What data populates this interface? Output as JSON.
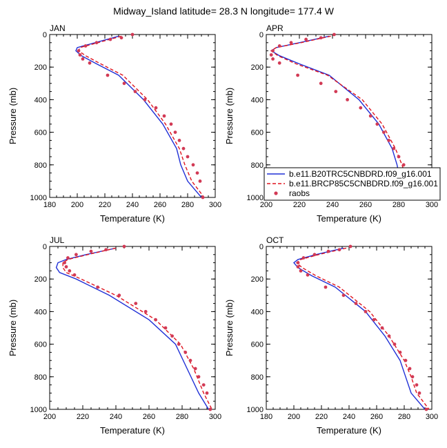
{
  "title": "Midway_Island  latitude= 28.3 N longitude= 177.4 W",
  "colors": {
    "model1": "#1f2fd6",
    "model2": "#e0141e",
    "raobs": "#d23a55",
    "axis": "#000000"
  },
  "legend": {
    "entries": [
      {
        "label": "b.e11.B20TRC5CNBDRD.f09_g16.001",
        "style": "solid"
      },
      {
        "label": "b.e11.BRCP85C5CNBDRD.f09_g16.001",
        "style": "dashed"
      },
      {
        "label": "raobs",
        "style": "marker"
      }
    ]
  },
  "chart_data": [
    {
      "type": "line",
      "title": "JAN",
      "xlabel": "Temperature (K)",
      "ylabel": "Pressure (mb)",
      "xlim": [
        180,
        300
      ],
      "ylim": [
        1000,
        0
      ],
      "xticks": [
        180,
        200,
        220,
        240,
        260,
        280,
        300
      ],
      "yticks": [
        0,
        200,
        400,
        600,
        800,
        1000
      ],
      "series": [
        {
          "name": "b.e11.B20TRC5CNBDRD.f09_g16.001",
          "x": [
            230,
            213,
            200,
            199,
            203,
            214,
            230,
            248,
            262,
            272,
            275,
            280,
            290
          ],
          "y": [
            10,
            50,
            80,
            100,
            130,
            180,
            250,
            400,
            550,
            700,
            800,
            900,
            1000
          ]
        },
        {
          "name": "b.e11.BRCP85C5CNBDRD.f09_g16.001",
          "x": [
            232,
            215,
            202,
            201,
            206,
            217,
            233,
            251,
            264,
            274,
            278,
            283,
            292
          ],
          "y": [
            10,
            50,
            80,
            100,
            130,
            180,
            250,
            400,
            550,
            700,
            800,
            900,
            1000
          ]
        },
        {
          "name": "raobs",
          "x": [
            240,
            232,
            224,
            214,
            206,
            201,
            202,
            204,
            209,
            222,
            234,
            242,
            249,
            257,
            263,
            268,
            271,
            274,
            277,
            280,
            284,
            287,
            289,
            291
          ],
          "y": [
            0,
            20,
            30,
            50,
            70,
            100,
            125,
            150,
            175,
            250,
            300,
            350,
            400,
            450,
            500,
            550,
            600,
            650,
            700,
            750,
            800,
            850,
            900,
            1000
          ]
        }
      ]
    },
    {
      "type": "line",
      "title": "APR",
      "xlabel": "Temperature (K)",
      "ylabel": "Pressure (mb)",
      "xlim": [
        200,
        300
      ],
      "ylim": [
        1000,
        0
      ],
      "xticks": [
        200,
        220,
        240,
        260,
        280,
        300
      ],
      "yticks": [
        0,
        200,
        400,
        600,
        800,
        1000
      ],
      "series": [
        {
          "name": "b.e11.B20TRC5CNBDRD.f09_g16.001",
          "x": [
            238,
            220,
            206,
            203,
            208,
            220,
            238,
            256,
            268,
            276,
            279,
            281,
            287
          ],
          "y": [
            10,
            50,
            80,
            100,
            130,
            180,
            250,
            400,
            550,
            700,
            800,
            900,
            1000
          ]
        },
        {
          "name": "b.e11.BRCP85C5CNBDRD.f09_g16.001",
          "x": [
            239,
            221,
            206,
            203,
            207,
            218,
            237,
            258,
            270,
            278,
            282,
            285,
            291
          ],
          "y": [
            10,
            50,
            80,
            100,
            130,
            180,
            250,
            400,
            550,
            700,
            800,
            900,
            1000
          ]
        },
        {
          "name": "raobs",
          "x": [
            241,
            233,
            224,
            215,
            208,
            204,
            203,
            204,
            208,
            219,
            233,
            242,
            249,
            257,
            263,
            267,
            271,
            274,
            277,
            280,
            283,
            285,
            287,
            291
          ],
          "y": [
            0,
            20,
            30,
            50,
            70,
            100,
            125,
            150,
            175,
            250,
            300,
            350,
            400,
            450,
            500,
            550,
            600,
            650,
            700,
            750,
            800,
            850,
            900,
            1000
          ]
        }
      ]
    },
    {
      "type": "line",
      "title": "JUL",
      "xlabel": "Temperature (K)",
      "ylabel": "Pressure (mb)",
      "xlim": [
        200,
        300
      ],
      "ylim": [
        1000,
        0
      ],
      "xticks": [
        200,
        220,
        240,
        260,
        280,
        300
      ],
      "yticks": [
        0,
        200,
        400,
        600,
        800,
        1000
      ],
      "series": [
        {
          "name": "b.e11.B20TRC5CNBDRD.f09_g16.001",
          "x": [
            240,
            222,
            210,
            205,
            204,
            206,
            216,
            236,
            260,
            276,
            283,
            290,
            296
          ],
          "y": [
            10,
            50,
            80,
            100,
            130,
            160,
            200,
            300,
            450,
            600,
            750,
            900,
            1000
          ]
        },
        {
          "name": "b.e11.BRCP85C5CNBDRD.f09_g16.001",
          "x": [
            240,
            223,
            211,
            208,
            208,
            210,
            219,
            240,
            264,
            279,
            287,
            293,
            298
          ],
          "y": [
            10,
            50,
            80,
            100,
            130,
            160,
            200,
            300,
            450,
            600,
            750,
            900,
            1000
          ]
        },
        {
          "name": "raobs",
          "x": [
            245,
            234,
            225,
            216,
            211,
            209,
            210,
            212,
            215,
            229,
            242,
            252,
            258,
            264,
            270,
            274,
            278,
            282,
            285,
            288,
            290,
            293,
            295,
            297
          ],
          "y": [
            0,
            20,
            30,
            50,
            70,
            100,
            125,
            150,
            175,
            250,
            300,
            350,
            400,
            450,
            500,
            550,
            600,
            650,
            700,
            750,
            800,
            850,
            900,
            1000
          ]
        }
      ]
    },
    {
      "type": "line",
      "title": "OCT",
      "xlabel": "Temperature (K)",
      "ylabel": "Pressure (mb)",
      "xlim": [
        180,
        300
      ],
      "ylim": [
        1000,
        0
      ],
      "xticks": [
        180,
        200,
        220,
        240,
        260,
        280,
        300
      ],
      "yticks": [
        0,
        200,
        400,
        600,
        800,
        1000
      ],
      "series": [
        {
          "name": "b.e11.B20TRC5CNBDRD.f09_g16.001",
          "x": [
            236,
            216,
            203,
            200,
            203,
            213,
            230,
            252,
            266,
            277,
            281,
            285,
            295
          ],
          "y": [
            10,
            50,
            80,
            100,
            130,
            180,
            250,
            400,
            550,
            700,
            800,
            900,
            1000
          ]
        },
        {
          "name": "b.e11.BRCP85C5CNBDRD.f09_g16.001",
          "x": [
            238,
            218,
            205,
            202,
            206,
            216,
            233,
            255,
            269,
            280,
            285,
            289,
            298
          ],
          "y": [
            10,
            50,
            80,
            100,
            130,
            180,
            250,
            400,
            550,
            700,
            800,
            900,
            1000
          ]
        },
        {
          "name": "raobs",
          "x": [
            241,
            233,
            225,
            215,
            207,
            203,
            203,
            205,
            210,
            223,
            236,
            245,
            252,
            258,
            264,
            269,
            273,
            277,
            281,
            284,
            286,
            289,
            291,
            296
          ],
          "y": [
            0,
            20,
            30,
            50,
            70,
            100,
            125,
            150,
            175,
            250,
            300,
            350,
            400,
            450,
            500,
            550,
            600,
            650,
            700,
            750,
            800,
            850,
            900,
            1000
          ]
        }
      ]
    }
  ]
}
